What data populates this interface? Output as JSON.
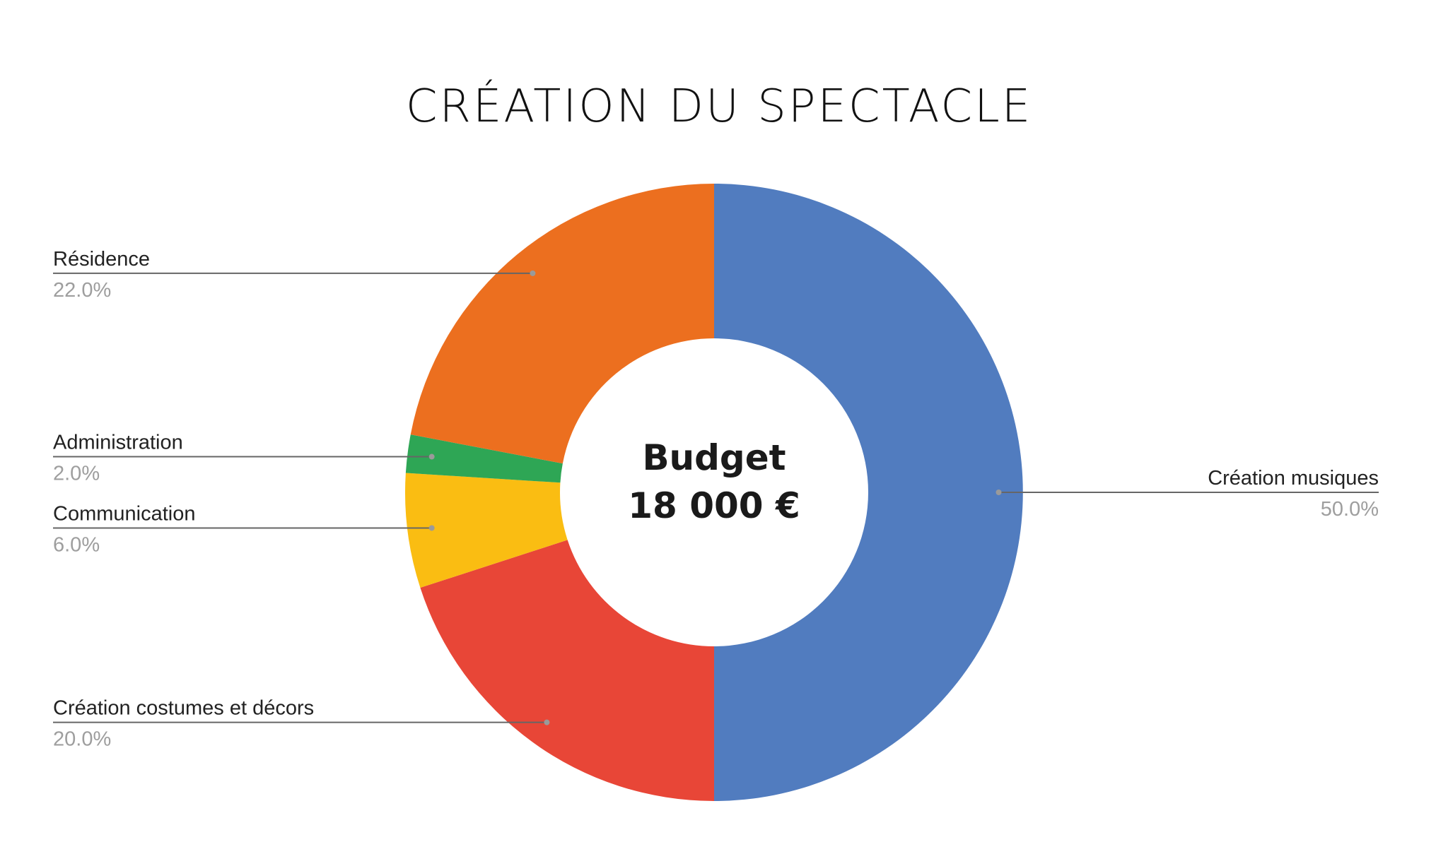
{
  "chart_data": {
    "type": "pie",
    "donut": true,
    "title": "CRÉATION DU SPECTACLE",
    "center_text": [
      "Budget",
      "18 000 €"
    ],
    "series": [
      {
        "label": "Création musiques",
        "value": 50.0,
        "percent_label": "50.0%",
        "color": "#517CBF",
        "label_side": "right"
      },
      {
        "label": "Création costumes et décors",
        "value": 20.0,
        "percent_label": "20.0%",
        "color": "#E84637",
        "label_side": "left"
      },
      {
        "label": "Communication",
        "value": 6.0,
        "percent_label": "6.0%",
        "color": "#FABD12",
        "label_side": "left"
      },
      {
        "label": "Administration",
        "value": 2.0,
        "percent_label": "2.0%",
        "color": "#2EA655",
        "label_side": "left"
      },
      {
        "label": "Résidence",
        "value": 22.0,
        "percent_label": "22.0%",
        "color": "#EC6F1F",
        "label_side": "left"
      }
    ],
    "legend": "labels-beside-slices",
    "colors": {
      "label_text": "#222222",
      "percent_text": "#9e9e9e",
      "leader_line": "#666666"
    }
  }
}
